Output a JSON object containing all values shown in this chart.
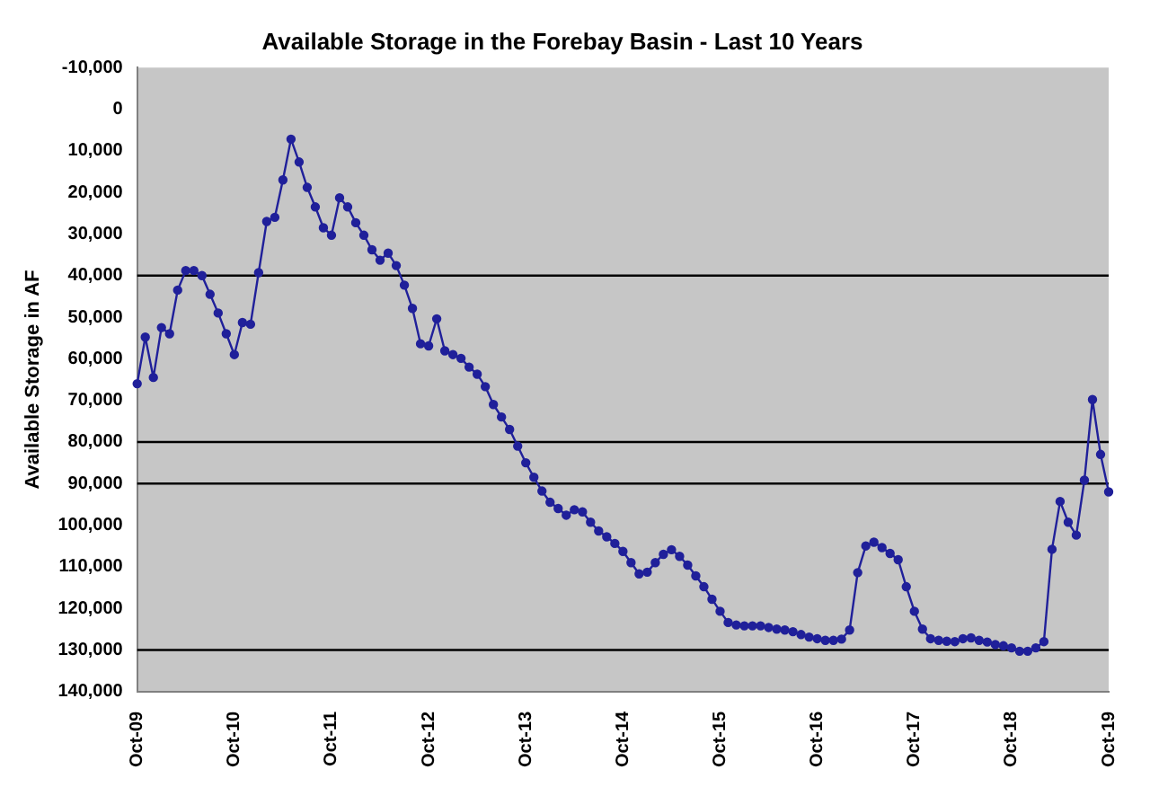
{
  "chart_data": {
    "type": "line",
    "title": "Available Storage in the Forebay Basin - Last 10 Years",
    "ylabel": "Available Storage in AF",
    "categories": [
      "Oct-09",
      null,
      null,
      null,
      null,
      null,
      null,
      null,
      null,
      null,
      null,
      null,
      "Oct-10",
      null,
      null,
      null,
      null,
      null,
      null,
      null,
      null,
      null,
      null,
      null,
      "Oct-11",
      null,
      null,
      null,
      null,
      null,
      null,
      null,
      null,
      null,
      null,
      null,
      "Oct-12",
      null,
      null,
      null,
      null,
      null,
      null,
      null,
      null,
      null,
      null,
      null,
      "Oct-13",
      null,
      null,
      null,
      null,
      null,
      null,
      null,
      null,
      null,
      null,
      null,
      "Oct-14",
      null,
      null,
      null,
      null,
      null,
      null,
      null,
      null,
      null,
      null,
      null,
      "Oct-15",
      null,
      null,
      null,
      null,
      null,
      null,
      null,
      null,
      null,
      null,
      null,
      "Oct-16",
      null,
      null,
      null,
      null,
      null,
      null,
      null,
      null,
      null,
      null,
      null,
      "Oct-17",
      null,
      null,
      null,
      null,
      null,
      null,
      null,
      null,
      null,
      null,
      null,
      "Oct-18",
      null,
      null,
      null,
      null,
      null,
      null,
      null,
      null,
      null,
      null,
      null,
      "Oct-19"
    ],
    "series": [
      {
        "color": "#20209a",
        "values": [
          66000,
          54800,
          64500,
          52500,
          54000,
          43500,
          38800,
          38800,
          40000,
          44500,
          49000,
          54000,
          59000,
          51300,
          51700,
          39300,
          27000,
          26000,
          17000,
          7200,
          12700,
          18800,
          23500,
          28500,
          30300,
          21300,
          23500,
          27300,
          30300,
          33800,
          36300,
          34600,
          37600,
          42300,
          47900,
          56400,
          56900,
          50400,
          58100,
          59000,
          59900,
          62000,
          63700,
          66700,
          71000,
          74000,
          77000,
          81000,
          85000,
          88500,
          91800,
          94500,
          96000,
          97600,
          96300,
          96800,
          99300,
          101400,
          102800,
          104400,
          106300,
          109000,
          111700,
          111300,
          109000,
          107000,
          105900,
          107500,
          109600,
          112200,
          114800,
          117800,
          120700,
          123400,
          124000,
          124200,
          124200,
          124200,
          124600,
          125000,
          125200,
          125600,
          126300,
          126900,
          127300,
          127700,
          127700,
          127400,
          125200,
          111400,
          105000,
          104100,
          105400,
          106800,
          108300,
          114800,
          120700,
          125000,
          127300,
          127700,
          127900,
          128000,
          127300,
          127100,
          127700,
          128100,
          128700,
          129000,
          129500,
          130300,
          130300,
          129500,
          128000,
          105800,
          94300,
          99300,
          102400,
          89200,
          69800,
          83000,
          92000
        ]
      }
    ],
    "ylim": [
      140000,
      -10000
    ],
    "yticks": [
      {
        "value": -10000,
        "label": "-10,000"
      },
      0,
      {
        "value": 10000,
        "label": "10,000"
      },
      {
        "value": 20000,
        "label": "20,000"
      },
      {
        "value": 30000,
        "label": "30,000"
      },
      {
        "value": 40000,
        "label": "40,000"
      },
      {
        "value": 50000,
        "label": "50,000"
      },
      {
        "value": 60000,
        "label": "60,000"
      },
      {
        "value": 70000,
        "label": "70,000"
      },
      {
        "value": 80000,
        "label": "80,000"
      },
      {
        "value": 90000,
        "label": "90,000"
      },
      {
        "value": 100000,
        "label": "100,000"
      },
      {
        "value": 110000,
        "label": "110,000"
      },
      {
        "value": 120000,
        "label": "120,000"
      },
      {
        "value": 130000,
        "label": "130,000"
      },
      {
        "value": 140000,
        "label": "140,000"
      }
    ],
    "ref_lines": [
      {
        "axis": "y",
        "value": 40000,
        "color": "#000000"
      },
      {
        "axis": "y",
        "value": 80000,
        "color": "#000000"
      },
      {
        "axis": "y",
        "value": 90000,
        "color": "#000000"
      },
      {
        "axis": "y",
        "value": 130000,
        "color": "#000000"
      }
    ],
    "grid": false,
    "legend": false,
    "marker": "circle",
    "line_style": "solid"
  }
}
